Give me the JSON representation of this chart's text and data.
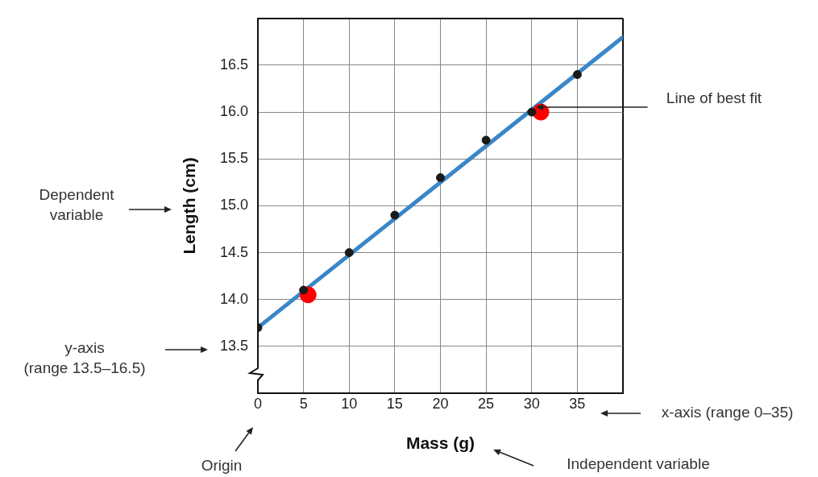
{
  "chart_data": {
    "type": "scatter",
    "xlabel": "Mass (g)",
    "ylabel": "Length (cm)",
    "xlim": [
      0,
      40
    ],
    "ylim": [
      13,
      17
    ],
    "xticks": [
      0,
      5,
      10,
      15,
      20,
      25,
      30,
      35,
      {
        "value": 40,
        "label": null
      }
    ],
    "yticks": [
      {
        "value": 13,
        "label": null
      },
      {
        "value": 13.5,
        "label": "13.5"
      },
      {
        "value": 14,
        "label": "14.0"
      },
      {
        "value": 14.5,
        "label": "14.5"
      },
      {
        "value": 15,
        "label": "15.0"
      },
      {
        "value": 15.5,
        "label": "15.5"
      },
      {
        "value": 16,
        "label": "16.0"
      },
      {
        "value": 16.5,
        "label": "16.5"
      },
      {
        "value": 17,
        "label": null
      }
    ],
    "grid": true,
    "legend": false,
    "marker": "circle",
    "series": [
      {
        "type": "line",
        "color": "#3a87c8",
        "x": [
          0,
          40
        ],
        "values": [
          13.7,
          16.8
        ],
        "marker": "none"
      },
      {
        "type": "scatter",
        "color": "#1a1a1a",
        "x": [
          0,
          5,
          10,
          15,
          20,
          25,
          30,
          35
        ],
        "values": [
          13.7,
          14.1,
          14.5,
          14.9,
          15.3,
          15.7,
          16.0,
          16.4
        ]
      },
      {
        "type": "scatter",
        "color": "#ff0000",
        "x": [
          5.5,
          31
        ],
        "values": [
          14.05,
          16.0
        ]
      }
    ],
    "annotations": [
      "Dependent\nvariable",
      "y-axis\n(range 13.5–16.5)",
      "Origin",
      "Independent variable",
      "x-axis (range 0–35)",
      {
        "text": "Line of best fit",
        "x": 30.5,
        "y": 16.05
      }
    ]
  }
}
